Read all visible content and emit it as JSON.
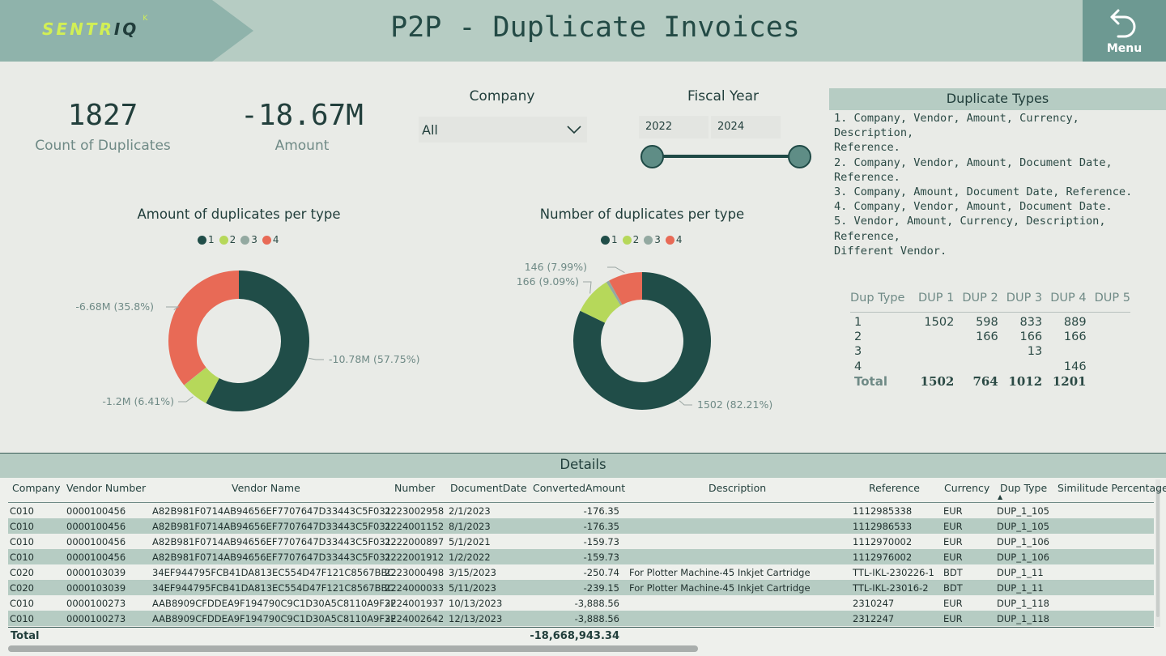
{
  "header": {
    "logo": {
      "text_main": "SENTR",
      "text_accent": "IQ",
      "mark": "K"
    },
    "title": "P2P - Duplicate Invoices",
    "menu": {
      "label": "Menu",
      "icon": "undo-arrow-icon"
    }
  },
  "kpis": [
    {
      "value": "1827",
      "label": "Count of Duplicates"
    },
    {
      "value": "-18.67M",
      "label": "Amount"
    }
  ],
  "filters": {
    "company": {
      "title": "Company",
      "value": "All"
    },
    "fiscal_year": {
      "title": "Fiscal Year",
      "from": "2022",
      "to": "2024"
    }
  },
  "duplicate_types": {
    "title": "Duplicate Types",
    "items": [
      "1. Company, Vendor, Amount, Currency, Description,\nReference.",
      "2. Company, Vendor, Amount, Document Date, Reference.",
      "3. Company, Amount, Document Date, Reference.",
      "4. Company, Vendor, Amount, Document Date.",
      "5. Vendor, Amount, Currency, Description, Reference,\nDifferent Vendor."
    ]
  },
  "colors": {
    "type1": "#204d48",
    "type2": "#b6d85a",
    "type3": "#93a9a1",
    "type4": "#e86a56"
  },
  "chart_data": [
    {
      "type": "pie",
      "title": "Amount of duplicates per type",
      "legend": [
        "1",
        "2",
        "3",
        "4"
      ],
      "series": [
        {
          "name": "1",
          "value": -10.78,
          "label": "-10.78M (57.75%)",
          "percent": 57.75
        },
        {
          "name": "2",
          "value": -1.2,
          "label": "-1.2M (6.41%)",
          "percent": 6.41
        },
        {
          "name": "3",
          "value": -0.01,
          "label": "",
          "percent": 0.04
        },
        {
          "name": "4",
          "value": -6.68,
          "label": "-6.68M (35.8%)",
          "percent": 35.8
        }
      ]
    },
    {
      "type": "pie",
      "title": "Number of duplicates per type",
      "legend": [
        "1",
        "2",
        "3",
        "4"
      ],
      "series": [
        {
          "name": "1",
          "value": 1502,
          "label": "1502 (82.21%)",
          "percent": 82.21
        },
        {
          "name": "2",
          "value": 166,
          "label": "166 (9.09%)",
          "percent": 9.09
        },
        {
          "name": "3",
          "value": 13,
          "label": "",
          "percent": 0.71
        },
        {
          "name": "4",
          "value": 146,
          "label": "146 (7.99%)",
          "percent": 7.99
        }
      ]
    }
  ],
  "matrix": {
    "columns": [
      "Dup Type",
      "DUP 1",
      "DUP 2",
      "DUP 3",
      "DUP 4",
      "DUP 5"
    ],
    "rows": [
      [
        "1",
        "1502",
        "598",
        "833",
        "889",
        ""
      ],
      [
        "2",
        "",
        "166",
        "166",
        "166",
        ""
      ],
      [
        "3",
        "",
        "",
        "13",
        "",
        ""
      ],
      [
        "4",
        "",
        "",
        "",
        "146",
        ""
      ]
    ],
    "total": [
      "Total",
      "1502",
      "764",
      "1012",
      "1201",
      ""
    ]
  },
  "details": {
    "title": "Details",
    "columns": [
      "Company",
      "Vendor Number",
      "Vendor Name",
      "Number",
      "DocumentDate",
      "ConvertedAmount",
      "Description",
      "Reference",
      "Currency",
      "Dup Type",
      "Similitude Percentage"
    ],
    "rows": [
      [
        "C010",
        "0000100456",
        "A82B981F0714AB94656EF7707647D33443C5F031",
        "2223002958",
        "2/1/2023",
        "-176.35",
        "",
        "1112985338",
        "EUR",
        "DUP_1_105",
        ""
      ],
      [
        "C010",
        "0000100456",
        "A82B981F0714AB94656EF7707647D33443C5F031",
        "2224001152",
        "8/1/2023",
        "-176.35",
        "",
        "1112986533",
        "EUR",
        "DUP_1_105",
        ""
      ],
      [
        "C010",
        "0000100456",
        "A82B981F0714AB94656EF7707647D33443C5F031",
        "2222000897",
        "5/1/2021",
        "-159.73",
        "",
        "1112970002",
        "EUR",
        "DUP_1_106",
        ""
      ],
      [
        "C010",
        "0000100456",
        "A82B981F0714AB94656EF7707647D33443C5F031",
        "2222001912",
        "1/2/2022",
        "-159.73",
        "",
        "1112976002",
        "EUR",
        "DUP_1_106",
        ""
      ],
      [
        "C020",
        "0000103039",
        "34EF944795FCB41DA813EC554D47F121C8567BBC",
        "2223000498",
        "3/15/2023",
        "-250.74",
        "For Plotter Machine-45 Inkjet Cartridge",
        "TTL-IKL-230226-1",
        "BDT",
        "DUP_1_11",
        ""
      ],
      [
        "C020",
        "0000103039",
        "34EF944795FCB41DA813EC554D47F121C8567BBC",
        "2224000033",
        "5/11/2023",
        "-239.15",
        "For Plotter Machine-45 Inkjet Cartridge",
        "TTL-IKL-23016-2",
        "BDT",
        "DUP_1_11",
        ""
      ],
      [
        "C010",
        "0000100273",
        "AAB8909CFDDEA9F194790C9C1D30A5C8110A9F3F",
        "2224001937",
        "10/13/2023",
        "-3,888.56",
        "",
        "2310247",
        "EUR",
        "DUP_1_118",
        ""
      ],
      [
        "C010",
        "0000100273",
        "AAB8909CFDDEA9F194790C9C1D30A5C8110A9F3F",
        "2224002642",
        "12/13/2023",
        "-3,888.56",
        "",
        "2312247",
        "EUR",
        "DUP_1_118",
        ""
      ]
    ],
    "total_label": "Total",
    "total_amount": "-18,668,943.34"
  }
}
